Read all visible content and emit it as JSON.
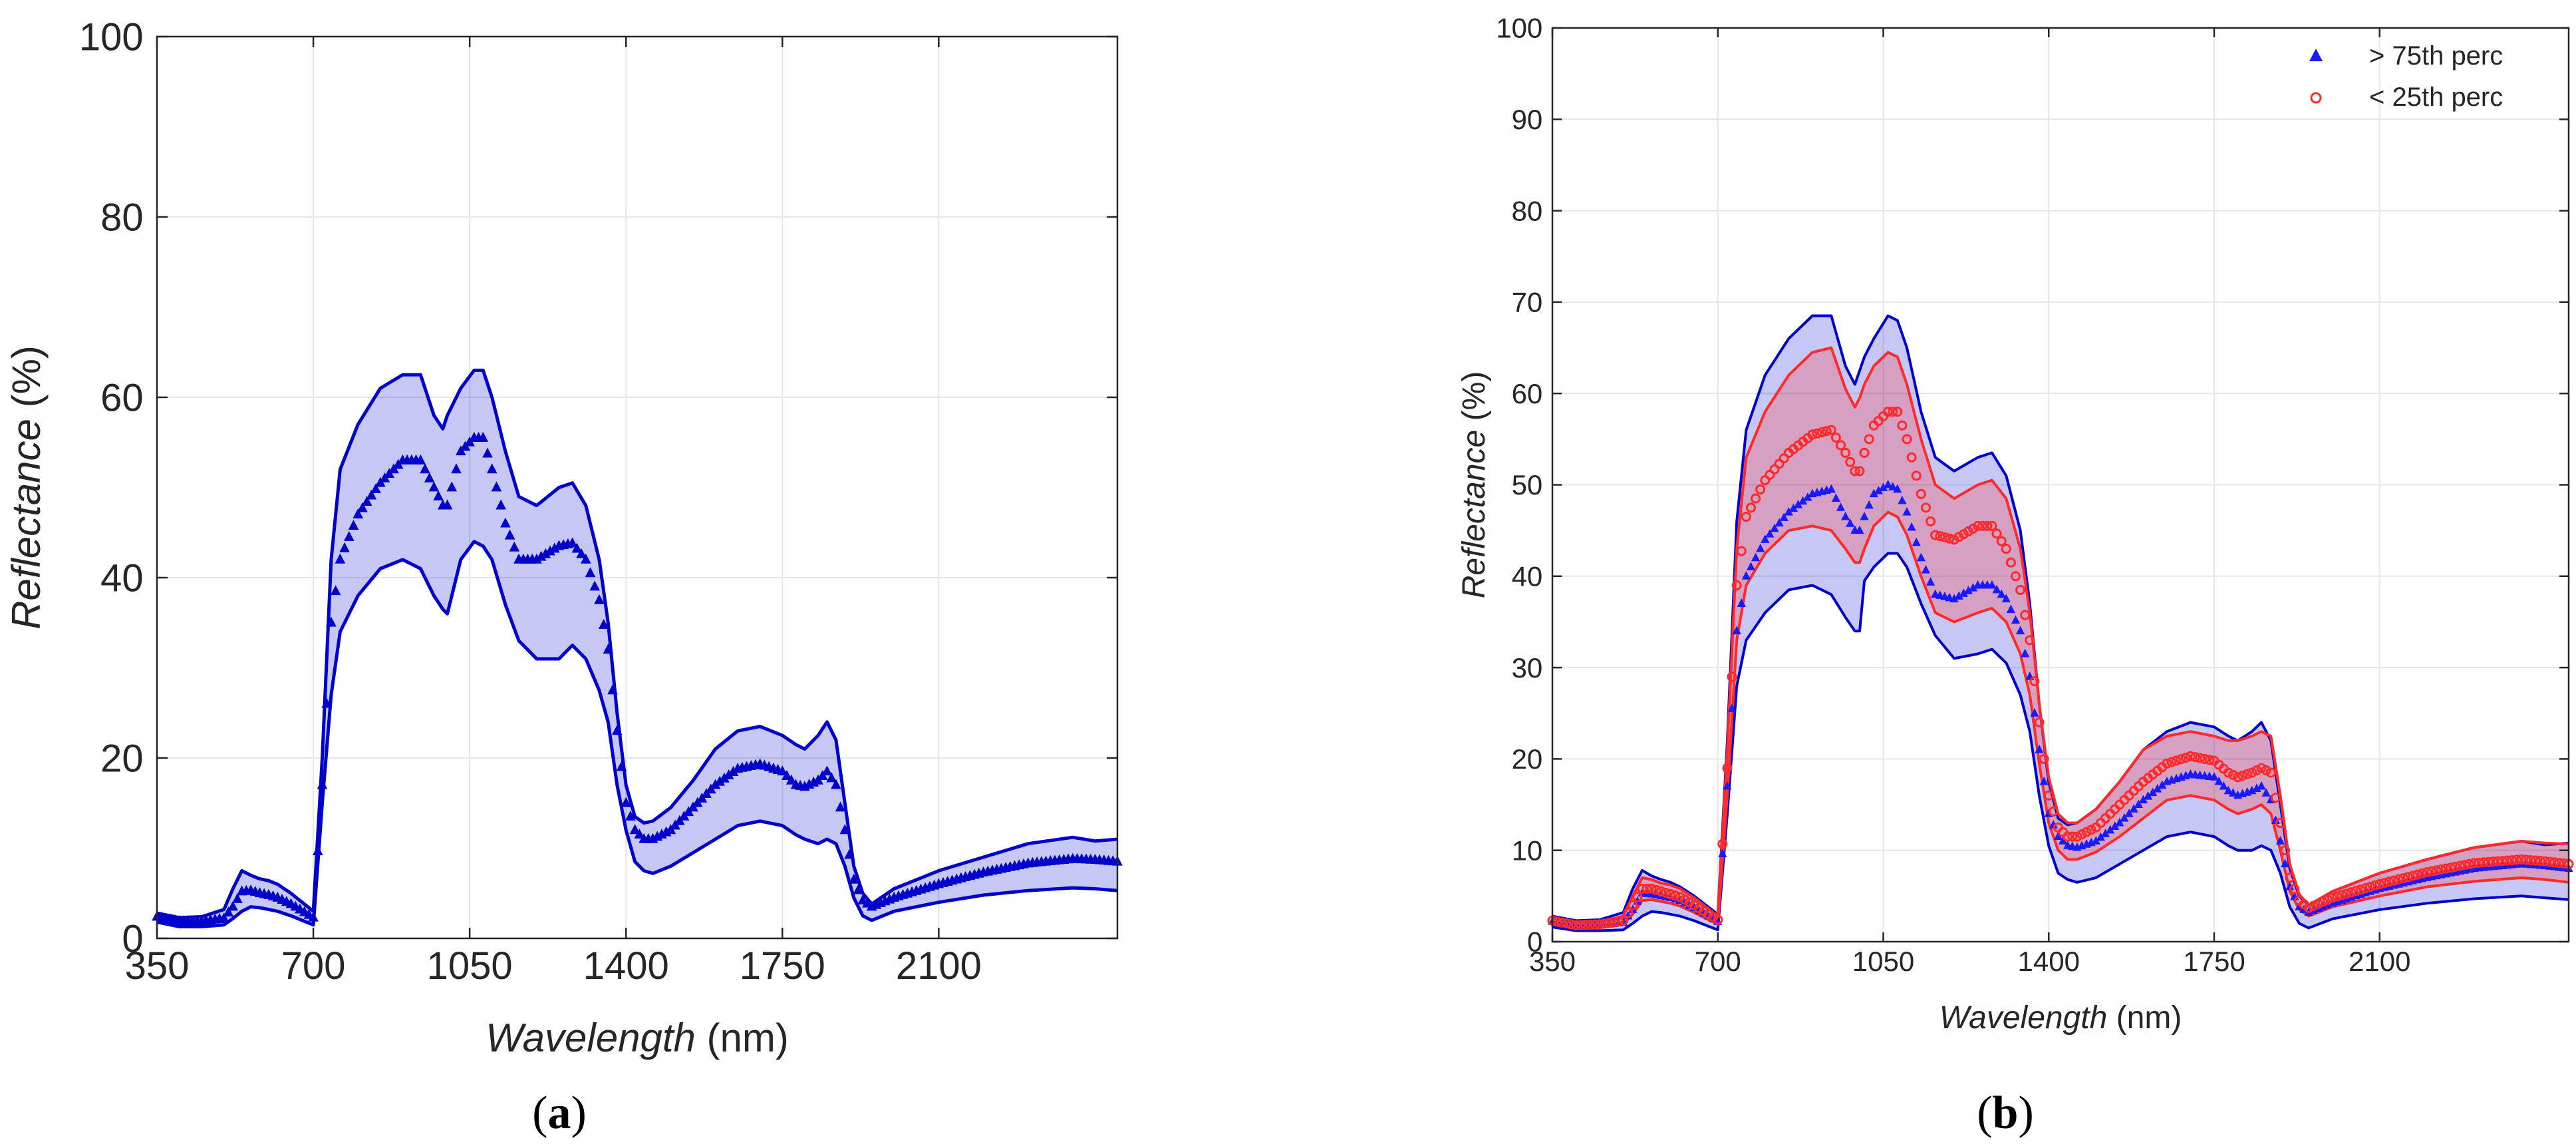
{
  "chart_data": [
    {
      "panel_id": "a",
      "type": "line",
      "caption": "a",
      "xlabel_italic": "Wavelength",
      "xlabel_unit": " (nm)",
      "ylabel_italic": "Reflectance",
      "ylabel_unit": " (%)",
      "xlim": [
        350,
        2500
      ],
      "ylim": [
        0,
        100
      ],
      "xticks": [
        350,
        700,
        1050,
        1400,
        1750,
        2100
      ],
      "yticks": [
        0,
        20,
        40,
        60,
        80,
        100
      ],
      "grid": true,
      "x": [
        350,
        400,
        450,
        500,
        520,
        540,
        560,
        580,
        600,
        620,
        650,
        680,
        700,
        720,
        740,
        760,
        800,
        850,
        900,
        940,
        970,
        990,
        1000,
        1010,
        1030,
        1060,
        1080,
        1100,
        1130,
        1160,
        1200,
        1250,
        1280,
        1310,
        1340,
        1360,
        1380,
        1400,
        1420,
        1440,
        1460,
        1500,
        1550,
        1600,
        1650,
        1700,
        1750,
        1780,
        1800,
        1830,
        1850,
        1870,
        1890,
        1910,
        1930,
        1950,
        2000,
        2100,
        2200,
        2300,
        2400,
        2450,
        2500
      ],
      "series": [
        {
          "name": "upper",
          "role": "band_upper",
          "color": "#0000cc",
          "values": [
            2.8,
            2.3,
            2.4,
            3.2,
            5.5,
            7.5,
            7.0,
            6.6,
            6.4,
            6.0,
            5.0,
            3.8,
            3.0,
            20.0,
            42.0,
            52.0,
            57.0,
            61.0,
            62.5,
            62.5,
            58.0,
            56.5,
            58.0,
            59.0,
            61.0,
            63.0,
            63.0,
            60.0,
            54.0,
            49.0,
            48.0,
            50.0,
            50.5,
            48.0,
            42.0,
            35.0,
            25.0,
            17.0,
            13.5,
            12.8,
            13.0,
            14.5,
            17.5,
            21.0,
            23.0,
            23.5,
            22.5,
            21.5,
            21.0,
            22.5,
            24.0,
            22.0,
            15.0,
            8.0,
            5.0,
            3.8,
            5.5,
            7.5,
            9.0,
            10.5,
            11.2,
            10.8,
            11.0
          ]
        },
        {
          "name": "mean",
          "role": "mean_markers",
          "color": "#0000cc",
          "values": [
            2.4,
            1.9,
            1.9,
            2.2,
            3.5,
            5.2,
            5.3,
            5.0,
            4.8,
            4.5,
            3.8,
            2.9,
            2.3,
            17.0,
            35.0,
            42.0,
            47.0,
            50.5,
            53.0,
            53.0,
            50.0,
            48.0,
            48.0,
            50.0,
            54.0,
            55.5,
            55.5,
            52.0,
            46.0,
            42.0,
            42.0,
            43.5,
            43.8,
            42.0,
            37.5,
            32.0,
            23.0,
            15.0,
            12.0,
            11.0,
            11.0,
            12.0,
            14.5,
            17.0,
            18.8,
            19.3,
            18.5,
            17.0,
            16.8,
            17.5,
            18.5,
            17.0,
            12.0,
            6.5,
            4.2,
            3.5,
            4.5,
            6.0,
            7.3,
            8.3,
            8.8,
            8.7,
            8.5
          ]
        },
        {
          "name": "lower",
          "role": "band_lower",
          "color": "#0000cc",
          "values": [
            1.8,
            1.3,
            1.3,
            1.5,
            2.2,
            3.0,
            3.5,
            3.4,
            3.2,
            3.0,
            2.5,
            1.9,
            1.5,
            15.0,
            27.0,
            34.0,
            38.0,
            41.0,
            42.0,
            41.0,
            38.0,
            36.5,
            36.0,
            38.0,
            42.0,
            44.0,
            43.5,
            42.0,
            37.0,
            33.0,
            31.0,
            31.0,
            32.5,
            31.0,
            27.5,
            24.0,
            17.0,
            12.0,
            8.5,
            7.5,
            7.2,
            8.0,
            9.5,
            11.0,
            12.5,
            13.0,
            12.5,
            11.5,
            11.0,
            10.5,
            11.0,
            10.5,
            8.0,
            4.5,
            2.5,
            2.0,
            3.0,
            4.0,
            4.8,
            5.3,
            5.6,
            5.5,
            5.3
          ]
        }
      ]
    },
    {
      "panel_id": "b",
      "type": "line",
      "caption": "b",
      "xlabel_italic": "Wavelength",
      "xlabel_unit": " (nm)",
      "ylabel_italic": "Reflectance",
      "ylabel_unit": " (%)",
      "xlim": [
        350,
        2500
      ],
      "ylim": [
        0,
        100
      ],
      "xticks": [
        350,
        700,
        1050,
        1400,
        1750,
        2100
      ],
      "yticks": [
        0,
        10,
        20,
        30,
        40,
        50,
        60,
        70,
        80,
        90,
        100
      ],
      "grid": true,
      "legend_position": "top-right",
      "legend": [
        {
          "label": "> 75th perc",
          "marker": "triangle",
          "color": "#1a1aff"
        },
        {
          "label": "< 25th perc",
          "marker": "circle",
          "color": "#ff2a2a"
        }
      ],
      "x": [
        350,
        400,
        450,
        500,
        520,
        540,
        560,
        580,
        600,
        620,
        650,
        680,
        700,
        720,
        740,
        760,
        800,
        850,
        900,
        940,
        970,
        990,
        1000,
        1010,
        1030,
        1060,
        1080,
        1100,
        1130,
        1160,
        1200,
        1250,
        1280,
        1310,
        1340,
        1360,
        1380,
        1400,
        1420,
        1440,
        1460,
        1500,
        1550,
        1600,
        1650,
        1700,
        1750,
        1780,
        1800,
        1830,
        1850,
        1870,
        1890,
        1910,
        1930,
        1950,
        2000,
        2100,
        2200,
        2300,
        2400,
        2450,
        2500
      ],
      "series": [
        {
          "name": "> 75th perc upper",
          "role": "band_upper",
          "color": "#0000cc",
          "values": [
            2.8,
            2.3,
            2.4,
            3.2,
            5.8,
            7.8,
            7.2,
            6.8,
            6.5,
            6.0,
            5.0,
            3.8,
            3.0,
            22.0,
            46.0,
            56.0,
            62.0,
            66.0,
            68.5,
            68.5,
            63.0,
            61.0,
            62.5,
            64.0,
            66.0,
            68.5,
            68.0,
            65.0,
            58.0,
            53.0,
            51.5,
            53.0,
            53.5,
            51.0,
            45.0,
            37.0,
            26.0,
            17.5,
            13.5,
            12.8,
            13.0,
            14.5,
            17.5,
            21.0,
            23.0,
            24.0,
            23.5,
            22.5,
            22.0,
            23.0,
            24.0,
            22.0,
            15.0,
            8.0,
            5.0,
            4.0,
            5.5,
            7.5,
            9.0,
            10.3,
            11.0,
            10.6,
            10.8
          ]
        },
        {
          "name": "> 75th perc mean",
          "role": "mean_markers",
          "color": "#1a1aff",
          "marker": "triangle",
          "values": [
            2.2,
            1.8,
            1.8,
            2.1,
            3.5,
            5.3,
            5.2,
            5.0,
            4.8,
            4.5,
            3.7,
            2.8,
            2.2,
            17.0,
            34.0,
            40.0,
            44.0,
            47.0,
            49.0,
            49.5,
            46.5,
            45.0,
            45.0,
            46.5,
            49.0,
            50.0,
            49.5,
            47.0,
            42.0,
            38.0,
            37.5,
            39.0,
            39.0,
            37.5,
            34.0,
            29.0,
            21.0,
            14.0,
            11.5,
            10.5,
            10.3,
            11.0,
            13.0,
            15.5,
            17.5,
            18.3,
            18.0,
            16.5,
            16.0,
            16.5,
            17.0,
            15.5,
            11.0,
            6.0,
            3.8,
            3.2,
            4.2,
            5.8,
            7.0,
            8.0,
            8.5,
            8.3,
            8.0
          ]
        },
        {
          "name": "> 75th perc lower",
          "role": "band_lower",
          "color": "#0000cc",
          "values": [
            1.6,
            1.2,
            1.2,
            1.3,
            2.0,
            2.8,
            3.3,
            3.2,
            3.0,
            2.8,
            2.3,
            1.7,
            1.3,
            14.0,
            28.0,
            33.0,
            36.0,
            38.5,
            39.0,
            38.0,
            35.5,
            34.0,
            34.0,
            39.5,
            41.0,
            42.5,
            42.5,
            41.0,
            37.0,
            33.5,
            31.0,
            31.5,
            32.0,
            30.5,
            27.0,
            23.0,
            16.0,
            10.5,
            7.5,
            6.8,
            6.5,
            7.0,
            8.5,
            10.0,
            11.5,
            12.0,
            11.5,
            10.5,
            10.0,
            10.0,
            10.5,
            10.0,
            7.5,
            3.8,
            2.0,
            1.5,
            2.5,
            3.5,
            4.2,
            4.7,
            5.0,
            4.8,
            4.6
          ]
        },
        {
          "name": "< 25th perc upper",
          "role": "band_upper",
          "color": "#ff2a2a",
          "values": [
            2.6,
            2.1,
            2.1,
            2.8,
            5.0,
            7.0,
            6.8,
            6.4,
            6.2,
            5.8,
            4.8,
            3.6,
            2.8,
            21.0,
            43.0,
            53.0,
            58.0,
            62.0,
            64.5,
            65.0,
            60.5,
            58.5,
            59.5,
            61.0,
            63.0,
            64.5,
            64.0,
            61.0,
            55.0,
            50.0,
            48.5,
            50.0,
            50.5,
            48.5,
            43.0,
            36.0,
            26.0,
            18.0,
            14.0,
            13.0,
            13.0,
            14.5,
            17.5,
            21.0,
            22.5,
            23.0,
            22.5,
            22.0,
            22.0,
            22.5,
            23.0,
            22.5,
            16.0,
            8.5,
            5.2,
            4.0,
            5.5,
            7.5,
            9.0,
            10.3,
            11.0,
            10.8,
            10.7
          ]
        },
        {
          "name": "< 25th perc mean",
          "role": "mean_markers",
          "color": "#ff2a2a",
          "marker": "circle",
          "values": [
            2.3,
            1.8,
            1.9,
            2.3,
            4.0,
            5.8,
            5.8,
            5.5,
            5.2,
            4.9,
            4.0,
            3.0,
            2.4,
            19.0,
            39.0,
            46.5,
            50.5,
            53.5,
            55.5,
            56.0,
            53.5,
            51.5,
            51.5,
            53.5,
            56.5,
            58.0,
            58.0,
            55.0,
            49.0,
            44.5,
            44.0,
            45.5,
            45.5,
            43.0,
            38.5,
            33.0,
            24.0,
            16.0,
            12.5,
            11.5,
            11.5,
            12.5,
            15.0,
            17.5,
            19.5,
            20.3,
            19.8,
            18.5,
            18.0,
            18.5,
            19.0,
            18.5,
            13.0,
            7.0,
            4.5,
            3.7,
            4.8,
            6.3,
            7.6,
            8.6,
            9.0,
            8.8,
            8.5
          ]
        },
        {
          "name": "< 25th perc lower",
          "role": "band_lower",
          "color": "#ff2a2a",
          "values": [
            2.0,
            1.5,
            1.6,
            1.9,
            3.0,
            4.5,
            4.6,
            4.4,
            4.2,
            3.9,
            3.2,
            2.4,
            1.9,
            16.0,
            33.0,
            39.0,
            42.5,
            45.0,
            45.5,
            45.0,
            43.0,
            41.5,
            41.5,
            43.0,
            45.5,
            47.0,
            46.5,
            44.5,
            40.0,
            36.0,
            35.0,
            36.0,
            36.5,
            35.0,
            31.5,
            27.0,
            19.5,
            13.0,
            10.0,
            9.0,
            9.0,
            9.8,
            11.5,
            13.5,
            15.5,
            16.0,
            15.5,
            14.5,
            14.0,
            14.5,
            15.0,
            14.0,
            10.0,
            5.5,
            3.5,
            2.8,
            3.8,
            5.0,
            6.0,
            6.6,
            7.0,
            6.8,
            6.5
          ]
        }
      ]
    }
  ]
}
